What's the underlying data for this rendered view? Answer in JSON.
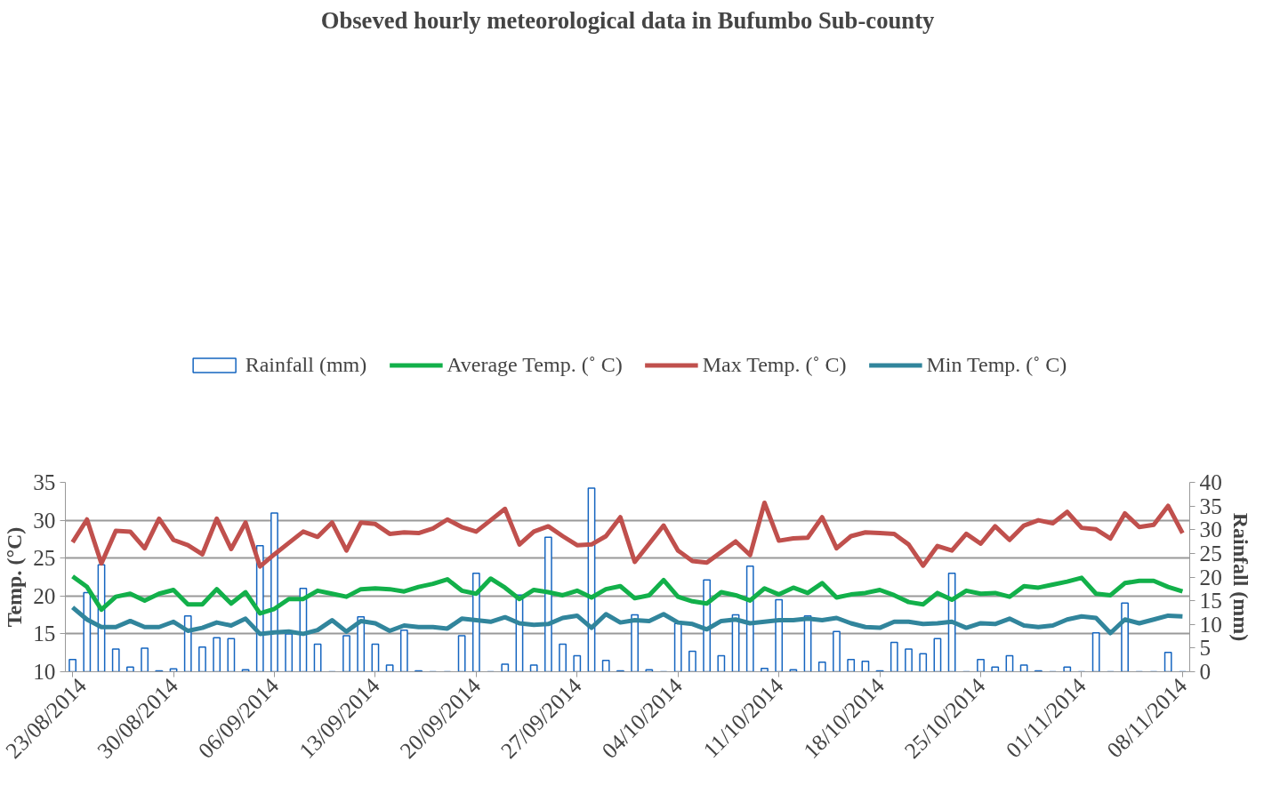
{
  "chart_data": {
    "type": "line",
    "title": "Obseved hourly meteorological data in Bufumbo Sub-county",
    "ylabel": "Temp. (°C)",
    "y2label": "Rainfall (mm)",
    "x": [
      "2014-08-23",
      "2014-08-24",
      "2014-08-25",
      "2014-08-26",
      "2014-08-27",
      "2014-08-28",
      "2014-08-29",
      "2014-08-30",
      "2014-08-31",
      "2014-09-01",
      "2014-09-02",
      "2014-09-03",
      "2014-09-04",
      "2014-09-05",
      "2014-09-06",
      "2014-09-07",
      "2014-09-08",
      "2014-09-09",
      "2014-09-10",
      "2014-09-11",
      "2014-09-12",
      "2014-09-13",
      "2014-09-14",
      "2014-09-15",
      "2014-09-16",
      "2014-09-17",
      "2014-09-18",
      "2014-09-19",
      "2014-09-20",
      "2014-09-21",
      "2014-09-22",
      "2014-09-23",
      "2014-09-24",
      "2014-09-25",
      "2014-09-26",
      "2014-09-27",
      "2014-09-28",
      "2014-09-29",
      "2014-09-30",
      "2014-10-01",
      "2014-10-02",
      "2014-10-03",
      "2014-10-04",
      "2014-10-05",
      "2014-10-06",
      "2014-10-07",
      "2014-10-08",
      "2014-10-09",
      "2014-10-10",
      "2014-10-11",
      "2014-10-12",
      "2014-10-13",
      "2014-10-14",
      "2014-10-15",
      "2014-10-16",
      "2014-10-17",
      "2014-10-18",
      "2014-10-19",
      "2014-10-20",
      "2014-10-21",
      "2014-10-22",
      "2014-10-23",
      "2014-10-24",
      "2014-10-25",
      "2014-10-26",
      "2014-10-27",
      "2014-10-28",
      "2014-10-29",
      "2014-10-30",
      "2014-10-31",
      "2014-11-01",
      "2014-11-02",
      "2014-11-03",
      "2014-11-04",
      "2014-11-05",
      "2014-11-06",
      "2014-11-07",
      "2014-11-08"
    ],
    "series": [
      {
        "name": "Rainfall (mm)",
        "type": "bar",
        "axis": "y2",
        "color": "#1565c0",
        "values": [
          2.6,
          16.7,
          22.6,
          4.8,
          1.0,
          5.0,
          0.2,
          0.6,
          11.8,
          5.2,
          7.2,
          7.0,
          0.4,
          26.6,
          33.5,
          8.0,
          17.6,
          5.8,
          0,
          7.6,
          11.6,
          5.8,
          1.4,
          8.8,
          0.2,
          0,
          0,
          7.6,
          20.8,
          0,
          1.6,
          16.2,
          1.4,
          28.4,
          5.8,
          3.4,
          38.8,
          2.4,
          0.2,
          12.0,
          0.4,
          0,
          10.2,
          4.3,
          19.4,
          3.4,
          12.0,
          22.3,
          0.7,
          15.2,
          0.4,
          11.8,
          2.0,
          8.5,
          2.6,
          2.2,
          0.2,
          6.2,
          4.8,
          3.8,
          7.0,
          20.8,
          0,
          2.6,
          1.0,
          3.4,
          1.4,
          0.2,
          0,
          1.0,
          0,
          8.2,
          0,
          14.5,
          0,
          0,
          4.1,
          0
        ]
      },
      {
        "name": "Average Temp. (˚ C)",
        "color": "#12b04a",
        "values": [
          22.6,
          21.2,
          18.2,
          19.9,
          20.3,
          19.4,
          20.3,
          20.8,
          18.9,
          18.9,
          20.9,
          19.0,
          20.5,
          17.7,
          18.3,
          19.6,
          19.6,
          20.7,
          20.3,
          19.9,
          20.9,
          21.0,
          20.9,
          20.6,
          21.2,
          21.6,
          22.2,
          20.7,
          20.3,
          22.3,
          21.1,
          19.6,
          20.8,
          20.5,
          20.1,
          20.7,
          19.8,
          20.9,
          21.3,
          19.7,
          20.1,
          22.1,
          19.9,
          19.3,
          19.0,
          20.5,
          20.1,
          19.4,
          21.0,
          20.2,
          21.1,
          20.4,
          21.7,
          19.8,
          20.2,
          20.4,
          20.8,
          20.1,
          19.2,
          18.9,
          20.4,
          19.5,
          20.7,
          20.3,
          20.4,
          19.9,
          21.3,
          21.1,
          21.5,
          21.9,
          22.4,
          20.3,
          20.1,
          21.7,
          22.0,
          22.0,
          21.2,
          20.6
        ]
      },
      {
        "name": "Max Temp. (˚ C)",
        "color": "#c0504d",
        "values": [
          27.1,
          30.1,
          24.3,
          28.6,
          28.5,
          26.3,
          30.2,
          27.4,
          26.7,
          25.5,
          30.2,
          26.2,
          29.7,
          23.9,
          25.5,
          27.0,
          28.5,
          27.8,
          29.7,
          26.0,
          29.7,
          29.5,
          28.2,
          28.4,
          28.3,
          28.9,
          30.1,
          29.1,
          28.5,
          30.0,
          31.5,
          26.8,
          28.5,
          29.2,
          27.9,
          26.7,
          26.8,
          27.9,
          30.4,
          24.5,
          26.9,
          29.3,
          26.0,
          24.6,
          24.4,
          25.8,
          27.2,
          25.4,
          32.3,
          27.3,
          27.6,
          27.7,
          30.4,
          26.3,
          27.9,
          28.4,
          28.3,
          28.2,
          26.8,
          24.0,
          26.6,
          26.0,
          28.2,
          26.9,
          29.2,
          27.4,
          29.3,
          30.0,
          29.6,
          31.1,
          29.0,
          28.8,
          27.6,
          30.9,
          29.1,
          29.4,
          31.9,
          28.3
        ]
      },
      {
        "name": "Min Temp. (˚ C)",
        "color": "#31859c",
        "values": [
          18.5,
          16.9,
          15.9,
          15.9,
          16.7,
          15.9,
          15.9,
          16.6,
          15.4,
          15.8,
          16.5,
          16.1,
          17.0,
          15.0,
          15.2,
          15.3,
          15.0,
          15.5,
          16.8,
          15.3,
          16.7,
          16.4,
          15.4,
          16.1,
          15.9,
          15.9,
          15.7,
          17.0,
          16.8,
          16.6,
          17.2,
          16.4,
          16.2,
          16.3,
          17.1,
          17.4,
          15.8,
          17.6,
          16.5,
          16.8,
          16.7,
          17.6,
          16.5,
          16.3,
          15.6,
          16.7,
          16.9,
          16.4,
          16.6,
          16.8,
          16.8,
          17.0,
          16.8,
          17.1,
          16.4,
          15.9,
          15.8,
          16.6,
          16.6,
          16.3,
          16.4,
          16.6,
          15.8,
          16.4,
          16.3,
          17.0,
          16.1,
          15.9,
          16.1,
          16.9,
          17.3,
          17.1,
          15.1,
          16.9,
          16.4,
          16.9,
          17.4,
          17.3
        ]
      }
    ],
    "xlim": [
      "2014-08-22T12:00",
      "2014-11-08T12:00"
    ],
    "xticks": [
      {
        "value": "2014-08-23",
        "label": "23/08/2014"
      },
      {
        "value": "2014-08-30",
        "label": "30/08/2014"
      },
      {
        "value": "2014-09-06",
        "label": "06/09/2014"
      },
      {
        "value": "2014-09-13",
        "label": "13/09/2014"
      },
      {
        "value": "2014-09-20",
        "label": "20/09/2014"
      },
      {
        "value": "2014-09-27",
        "label": "27/09/2014"
      },
      {
        "value": "2014-10-04",
        "label": "04/10/2014"
      },
      {
        "value": "2014-10-11",
        "label": "11/10/2014"
      },
      {
        "value": "2014-10-18",
        "label": "18/10/2014"
      },
      {
        "value": "2014-10-25",
        "label": "25/10/2014"
      },
      {
        "value": "2014-11-01",
        "label": "01/11/2014"
      },
      {
        "value": "2014-11-08",
        "label": "08/11/2014"
      }
    ],
    "ylim": [
      10,
      35
    ],
    "yticks": [
      10,
      15,
      20,
      25,
      30,
      35
    ],
    "y2lim": [
      0,
      40
    ],
    "y2ticks": [
      0,
      5,
      10,
      15,
      20,
      25,
      30,
      35,
      40
    ],
    "grid": "y",
    "legend": "top"
  }
}
